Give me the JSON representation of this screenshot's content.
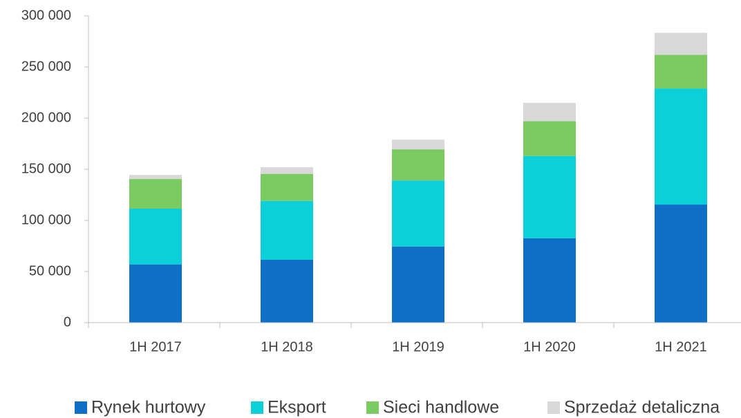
{
  "chart_data": {
    "type": "stacked_bar",
    "categories": [
      "1H 2017",
      "1H 2018",
      "1H 2019",
      "1H 2020",
      "1H 2021"
    ],
    "series": [
      {
        "name": "Rynek hurtowy",
        "color": "#0f6fc6",
        "values": [
          57000,
          61500,
          74500,
          82500,
          115500
        ]
      },
      {
        "name": "Eksport",
        "color": "#0cd0d8",
        "values": [
          54500,
          57500,
          64500,
          80500,
          113500
        ]
      },
      {
        "name": "Sieci handlowe",
        "color": "#7ccb62",
        "values": [
          29000,
          26500,
          30500,
          34000,
          33000
        ]
      },
      {
        "name": "Sprzedaż detaliczna",
        "color": "#d9d9d9",
        "values": [
          4000,
          6500,
          9500,
          18000,
          21500
        ]
      }
    ],
    "ylim": [
      0,
      300000
    ],
    "yticks": [
      0,
      {
        "value": 50000,
        "label": "50 000"
      },
      {
        "value": 100000,
        "label": "100 000"
      },
      {
        "value": 150000,
        "label": "150 000"
      },
      {
        "value": 200000,
        "label": "200 000"
      },
      {
        "value": 250000,
        "label": "250 000"
      },
      {
        "value": 300000,
        "label": "300 000"
      }
    ],
    "grid": false,
    "legend": "bottom"
  }
}
